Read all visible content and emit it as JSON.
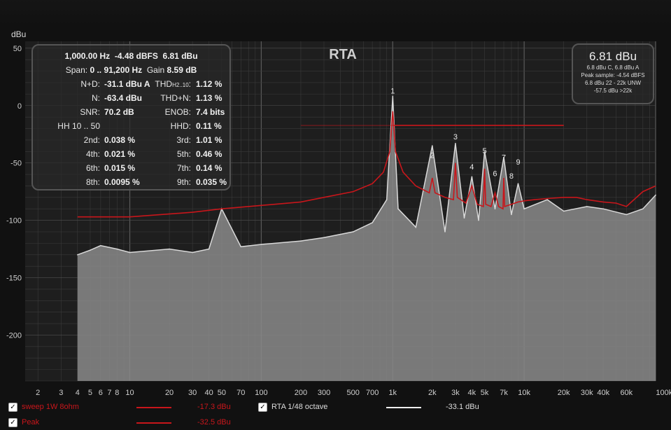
{
  "app": {
    "title": "RTA"
  },
  "colors": {
    "background": "#111111",
    "plot_bg": "#1e1e1e",
    "grid": "#3a3a3a",
    "red": "#c8161b",
    "spectrum": "#d9d9d9",
    "spectrum_fill": "#8a8a8a"
  },
  "stats": {
    "line1_freq": "1,000.00 Hz",
    "line1_dbfs": "-4.48 dBFS",
    "line1_dbu": "6.81 dBu",
    "span_label": "Span:",
    "span_value": "0 .. 91,200 Hz",
    "gain_label": "Gain",
    "gain_value": "8.59 dB",
    "rows": [
      {
        "l_label": "N+D:",
        "l_value": "-31.1 dBu A",
        "r_label": "THD",
        "r_sub": "H2..10",
        "r_value": "1.12 %"
      },
      {
        "l_label": "N:",
        "l_value": "-63.4 dBu",
        "r_label": "THD+N:",
        "r_value": "1.13 %"
      },
      {
        "l_label": "SNR:",
        "l_value": "70.2 dB",
        "r_label": "ENOB:",
        "r_value": "7.4 bits"
      },
      {
        "l_label": "HH 10 .. 50",
        "l_value": "",
        "r_label": "HHD:",
        "r_value": "0.11 %"
      },
      {
        "l_label": "2nd:",
        "l_value": "0.038 %",
        "r_label": "3rd:",
        "r_value": "1.01 %"
      },
      {
        "l_label": "4th:",
        "l_value": "0.021 %",
        "r_label": "5th:",
        "r_value": "0.46 %"
      },
      {
        "l_label": "6th:",
        "l_value": "0.015 %",
        "r_label": "7th:",
        "r_value": "0.14 %"
      },
      {
        "l_label": "8th:",
        "l_value": "0.0095 %",
        "r_label": "9th:",
        "r_value": "0.035 %"
      }
    ]
  },
  "peak": {
    "value": "6.81 dBu",
    "line1": "6.8 dBu C, 6.8 dBu A",
    "line2": "Peak sample: -4.54 dBFS",
    "line3": "6.8 dBu 22 - 22k UNW",
    "line4": "-57.5 dBu >22k"
  },
  "legend": [
    {
      "checked": true,
      "label": "sweep 1W 8ohm",
      "value": "-17.3 dBu",
      "color": "#c8161b",
      "icon": "check-icon"
    },
    {
      "checked": true,
      "label": "Peak",
      "value": "-32.5 dBu",
      "color": "#c8161b",
      "icon": "check-icon"
    },
    {
      "checked": true,
      "label": "RTA 1/48 octave",
      "value": "-33.1 dBu",
      "color": "#eeeeee",
      "icon": "check-icon"
    }
  ],
  "chart_data": {
    "type": "line",
    "title": "RTA",
    "ylabel": "dBu",
    "xscale": "log",
    "xlim": [
      1.6,
      100000
    ],
    "ylim": [
      -240,
      56
    ],
    "x_ticks": [
      2,
      3,
      4,
      5,
      6,
      7,
      8,
      10,
      20,
      30,
      40,
      50,
      70,
      100,
      200,
      300,
      500,
      700,
      1000,
      2000,
      3000,
      4000,
      5000,
      7000,
      10000,
      20000,
      30000,
      40000,
      60000,
      100000
    ],
    "x_tick_labels": [
      "2",
      "3",
      "4",
      "5",
      "6",
      "7",
      "8",
      "10",
      "20",
      "30",
      "40",
      "50",
      "70",
      "100",
      "200",
      "300",
      "500",
      "700",
      "1k",
      "2k",
      "3k",
      "4k",
      "5k",
      "7k",
      "10k",
      "20k",
      "30k",
      "40k",
      "60k",
      "100kHz"
    ],
    "y_ticks": [
      50,
      0,
      -50,
      -100,
      -150,
      -200
    ],
    "y_tick_labels": [
      "50",
      "0",
      "-50",
      "-100",
      "-150",
      "-200"
    ],
    "grid": true,
    "legend_position": "bottom",
    "series": [
      {
        "name": "sweep 1W 8ohm",
        "x": [
          1000,
          20000
        ],
        "y": [
          -17.3,
          -17.3
        ]
      },
      {
        "name": "Peak",
        "x": [
          4,
          10,
          30,
          50,
          100,
          200,
          300,
          500,
          700,
          850,
          950,
          1000,
          1050,
          1200,
          1500,
          1900,
          2000,
          2100,
          2500,
          2900,
          3000,
          3100,
          3600,
          4000,
          4400,
          4900,
          5000,
          5100,
          5600,
          6000,
          6400,
          6900,
          7000,
          7100,
          8000,
          9000,
          10000,
          12000,
          15000,
          20000,
          25000,
          30000,
          40000,
          50000,
          60000,
          80000,
          100000
        ],
        "y": [
          -97,
          -97,
          -93,
          -90,
          -87,
          -84,
          -80,
          -75,
          -68,
          -58,
          -40,
          -5,
          -40,
          -58,
          -70,
          -76,
          -63,
          -76,
          -80,
          -82,
          -50,
          -80,
          -85,
          -70,
          -86,
          -88,
          -55,
          -86,
          -88,
          -76,
          -88,
          -90,
          -63,
          -88,
          -86,
          -84,
          -83,
          -82,
          -81,
          -80,
          -80,
          -82,
          -84,
          -85,
          -88,
          -75,
          -70
        ]
      },
      {
        "name": "RTA 1/48 octave",
        "x": [
          4,
          5,
          6,
          8,
          10,
          20,
          30,
          40,
          50,
          70,
          100,
          200,
          300,
          500,
          700,
          900,
          1000,
          1100,
          1500,
          2000,
          2500,
          3000,
          3500,
          4000,
          4500,
          5000,
          6000,
          7000,
          8000,
          9000,
          10000,
          15000,
          20000,
          30000,
          40000,
          60000,
          80000,
          100000
        ],
        "y": [
          -130,
          -126,
          -122,
          -125,
          -128,
          -125,
          -128,
          -125,
          -90,
          -123,
          -121,
          -118,
          -115,
          -110,
          -102,
          -82,
          8,
          -90,
          -106,
          -35,
          -110,
          -33,
          -98,
          -62,
          -100,
          -40,
          -90,
          -45,
          -95,
          -68,
          -90,
          -82,
          -92,
          -88,
          -90,
          -95,
          -90,
          -78
        ]
      }
    ],
    "annotations": [
      {
        "text": "1",
        "x": 1000,
        "y": 8
      },
      {
        "text": "2",
        "x": 2000,
        "y": -48
      },
      {
        "text": "3",
        "x": 3000,
        "y": -32
      },
      {
        "text": "4",
        "x": 4000,
        "y": -58
      },
      {
        "text": "5",
        "x": 5000,
        "y": -44
      },
      {
        "text": "6",
        "x": 6000,
        "y": -64
      },
      {
        "text": "7",
        "x": 7000,
        "y": -50
      },
      {
        "text": "8",
        "x": 8000,
        "y": -66
      },
      {
        "text": "9",
        "x": 9000,
        "y": -54
      }
    ]
  }
}
